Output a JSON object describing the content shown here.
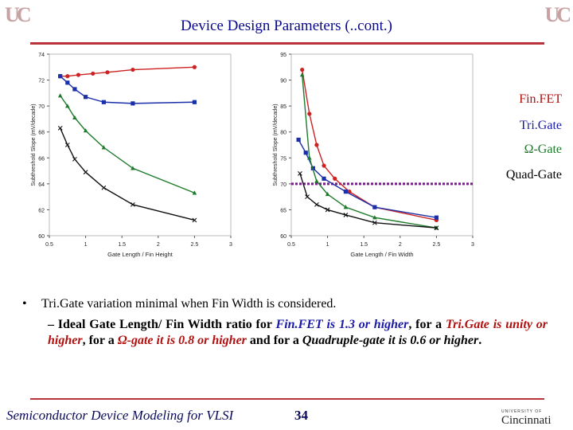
{
  "slide": {
    "title": "Device Design Parameters (..cont.)",
    "footer_text": "Semiconductor Device Modeling for VLSI",
    "page_number": "34",
    "logo_letters": "UC",
    "footer_logo_small": "UNIVERSITY OF",
    "footer_logo_name": "Cincinnati"
  },
  "legend": {
    "finfet": "Fin.FET",
    "trigate": "Tri.Gate",
    "omega": "Ω-Gate",
    "quad": "Quad-Gate"
  },
  "bullet": {
    "marker": "•",
    "line1": "Tri.Gate variation minimal when Fin Width is considered.",
    "dash": "– Ideal Gate Length/ Fin Width ratio for ",
    "finfet": "Fin.FET",
    "finfet_val": " is 1.3 or higher",
    "comma1": ", for a ",
    "trigate": "Tri.Gate",
    "trigate_val": " is unity or higher",
    "comma2": ", for a ",
    "omega": "Ω-gate",
    "omega_val": " it is 0.8 or higher",
    "and_for": " and for a ",
    "quad_val": "Quadruple-gate it is 0.6 or higher",
    "period": "."
  },
  "chart_data": [
    {
      "type": "line",
      "xlabel": "Gate Length / Fin Height",
      "ylabel": "Subthreshold Slope (mV/decade)",
      "xlim": [
        0.5,
        3
      ],
      "ylim": [
        60,
        74
      ],
      "xticks": [
        "0.5",
        "1",
        "1.5",
        "2",
        "2.5",
        "3"
      ],
      "yticks": [
        "60",
        "62",
        "64",
        "66",
        "68",
        "70",
        "72",
        "74"
      ],
      "series": [
        {
          "key": "finfet",
          "color": "#cc2222",
          "marker": "circle",
          "x": [
            0.65,
            0.75,
            0.9,
            1.1,
            1.3,
            1.65,
            2.5
          ],
          "y": [
            72.3,
            72.3,
            72.4,
            72.5,
            72.6,
            72.8,
            73.0
          ]
        },
        {
          "key": "trigate",
          "color": "#1a2fa8",
          "marker": "square",
          "x": [
            0.65,
            0.75,
            0.85,
            1.0,
            1.25,
            1.65,
            2.5
          ],
          "y": [
            72.3,
            71.8,
            71.3,
            70.7,
            70.3,
            70.2,
            70.3
          ]
        },
        {
          "key": "omega",
          "color": "#1e7a2a",
          "marker": "triangle",
          "x": [
            0.65,
            0.75,
            0.85,
            1.0,
            1.25,
            1.65,
            2.5
          ],
          "y": [
            70.8,
            70.0,
            69.1,
            68.1,
            66.8,
            65.2,
            63.3
          ]
        },
        {
          "key": "quad",
          "color": "#111111",
          "marker": "cross",
          "x": [
            0.65,
            0.75,
            0.85,
            1.0,
            1.25,
            1.65,
            2.5
          ],
          "y": [
            68.3,
            67.0,
            65.9,
            64.9,
            63.7,
            62.4,
            61.2
          ]
        }
      ]
    },
    {
      "type": "line",
      "xlabel": "Gate Length / Fin Width",
      "ylabel": "Subthreshold Slope (mV/decade)",
      "xlim": [
        0.5,
        3
      ],
      "ylim": [
        60,
        95
      ],
      "xticks": [
        "0.5",
        "1",
        "1.5",
        "2",
        "2.5",
        "3"
      ],
      "yticks": [
        "60",
        "65",
        "70",
        "75",
        "80",
        "85",
        "90",
        "95"
      ],
      "reference_line": {
        "y": 70,
        "color": "#7a1a8c"
      },
      "series": [
        {
          "key": "finfet",
          "color": "#cc2222",
          "marker": "circle",
          "x": [
            0.65,
            0.75,
            0.85,
            0.95,
            1.1,
            1.3,
            1.65,
            2.5
          ],
          "y": [
            92.0,
            83.5,
            77.5,
            73.5,
            71.0,
            68.5,
            65.5,
            63.0
          ]
        },
        {
          "key": "trigate",
          "color": "#1a2fa8",
          "marker": "square",
          "x": [
            0.6,
            0.7,
            0.8,
            0.95,
            1.25,
            1.65,
            2.5
          ],
          "y": [
            78.5,
            76.0,
            73.0,
            71.0,
            68.5,
            65.5,
            63.5
          ]
        },
        {
          "key": "omega",
          "color": "#1e7a2a",
          "marker": "triangle",
          "x": [
            0.65,
            0.75,
            0.85,
            1.0,
            1.25,
            1.65,
            2.5
          ],
          "y": [
            91.0,
            75.0,
            70.5,
            68.0,
            65.5,
            63.5,
            61.5
          ]
        },
        {
          "key": "quad",
          "color": "#111111",
          "marker": "cross",
          "x": [
            0.62,
            0.72,
            0.85,
            1.0,
            1.25,
            1.65,
            2.5
          ],
          "y": [
            72.0,
            67.5,
            66.0,
            65.0,
            64.0,
            62.5,
            61.5
          ]
        }
      ]
    }
  ]
}
